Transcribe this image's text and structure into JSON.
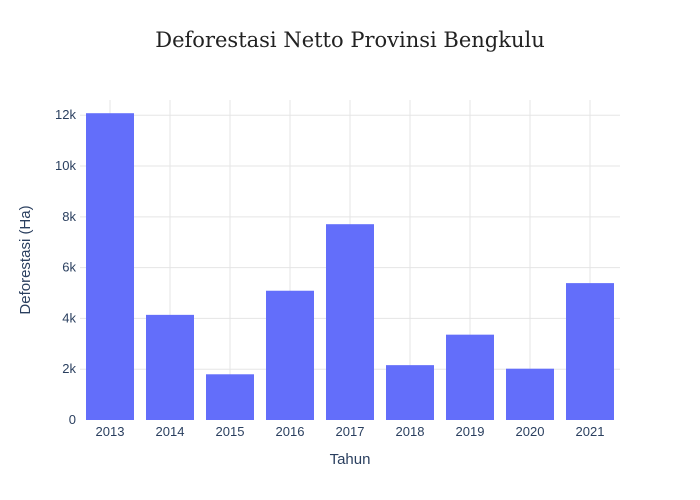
{
  "chart_data": {
    "type": "bar",
    "title": "Deforestasi Netto Provinsi Bengkulu",
    "xlabel": "Tahun",
    "ylabel": "Deforestasi (Ha)",
    "categories": [
      "2013",
      "2014",
      "2015",
      "2016",
      "2017",
      "2018",
      "2019",
      "2020",
      "2021"
    ],
    "values": [
      12080,
      4140,
      1800,
      5090,
      7710,
      2160,
      3360,
      2020,
      5390
    ],
    "ylim": [
      0,
      12600
    ],
    "yticks": [
      0,
      2000,
      4000,
      6000,
      8000,
      10000,
      12000
    ],
    "ytick_labels": [
      "0",
      "2k",
      "4k",
      "6k",
      "8k",
      "10k",
      "12k"
    ],
    "grid": true,
    "bar_color": "#636efa",
    "grid_color": "#e5e5e5"
  }
}
